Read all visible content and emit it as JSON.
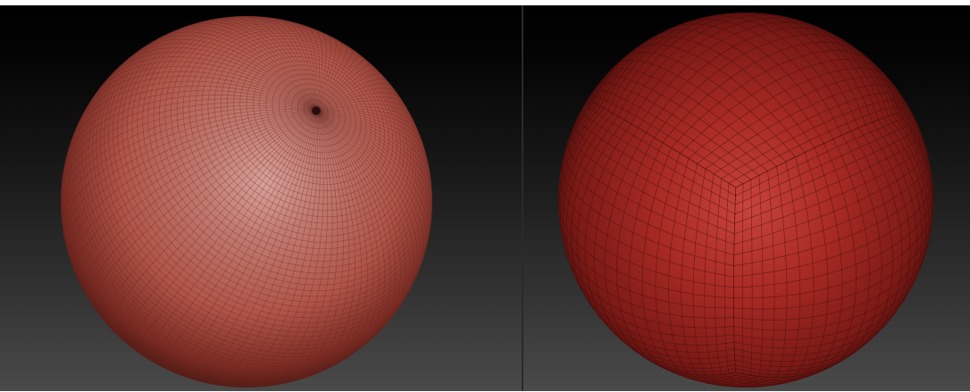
{
  "scene": {
    "panels": [
      {
        "subject": "sphere-uv-pole-topology",
        "material_color": "#b85a4e",
        "highlight_color": "#d8a09a",
        "shadow_color": "#3a0e0c",
        "wire_color": "#5a2620"
      },
      {
        "subject": "sphere-quad-cube-topology",
        "material_color": "#a82a24",
        "highlight_color": "#c8443c",
        "shadow_color": "#2e0606",
        "wire_color": "#3e0c0a"
      }
    ],
    "background_top": "#000000",
    "background_bottom": "#4a4a4a"
  }
}
